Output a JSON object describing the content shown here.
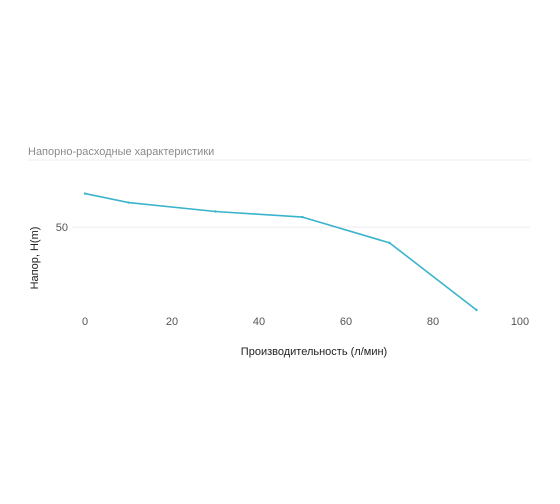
{
  "chart_data": {
    "type": "line",
    "title": "Напорно-расходные характеристики",
    "xlabel": "Производительность (л/мин)",
    "ylabel": "Напор, H(m)",
    "x": [
      0,
      10,
      30,
      50,
      70,
      90
    ],
    "series": [
      {
        "values": [
          65,
          61,
          57,
          54.5,
          43,
          13
        ],
        "color": "#3ab4cc"
      }
    ],
    "xlim": [
      0,
      100
    ],
    "ylim": [
      13,
      80
    ],
    "xticks": [
      "0",
      "20",
      "40",
      "60",
      "80",
      "100"
    ],
    "yticks": [
      "50"
    ],
    "grid": true,
    "legend": "none",
    "colors": {
      "line": "#3ab4cc",
      "grid": "#ececec",
      "title": "#8a8a8a",
      "ticks": "#555555",
      "axis_label": "#222222"
    }
  }
}
